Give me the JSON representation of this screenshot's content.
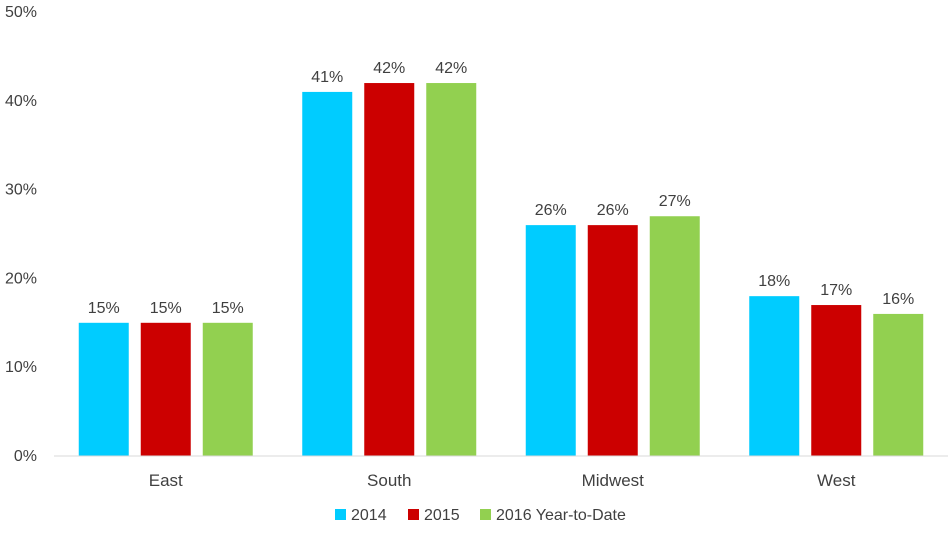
{
  "chart_data": {
    "type": "bar",
    "categories": [
      "East",
      "South",
      "Midwest",
      "West"
    ],
    "series": [
      {
        "name": "2014",
        "values": [
          15,
          41,
          26,
          18
        ],
        "labels": [
          "15%",
          "41%",
          "26%",
          "18%"
        ],
        "color": "#00CCFF"
      },
      {
        "name": "2015",
        "values": [
          15,
          42,
          26,
          17
        ],
        "labels": [
          "15%",
          "42%",
          "26%",
          "17%"
        ],
        "color": "#CC0000"
      },
      {
        "name": "2016 Year-to-Date",
        "values": [
          15,
          42,
          27,
          16
        ],
        "labels": [
          "15%",
          "42%",
          "27%",
          "16%"
        ],
        "color": "#92D050"
      }
    ],
    "ylim": [
      0,
      50
    ],
    "yticks": [
      0,
      10,
      20,
      30,
      40,
      50
    ],
    "ytick_labels": [
      "0%",
      "10%",
      "20%",
      "30%",
      "40%",
      "50%"
    ],
    "title": "",
    "xlabel": "",
    "ylabel": "",
    "grid": false,
    "legend": "bottom-center"
  }
}
